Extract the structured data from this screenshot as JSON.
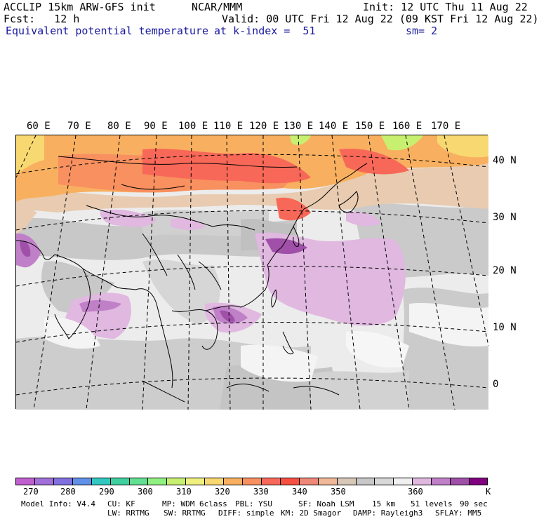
{
  "header": {
    "line1_left": "ACCLIP 15km ARW-GFS init",
    "line1_center": "NCAR/MMM",
    "line1_right": "Init: 12 UTC Thu 11 Aug 22",
    "line2_left": "Fcst:   12 h",
    "line2_right": "Valid: 00 UTC Fri 12 Aug 22 (09 KST Fri 12 Aug 22)",
    "field": "Equivalent potential temperature",
    "level": "at k-index =  51",
    "smoothing": "sm= 2"
  },
  "map": {
    "longitude_labels": [
      "60 E",
      "70 E",
      "80 E",
      "90 E",
      "100 E",
      "110 E",
      "120 E",
      "130 E",
      "140 E",
      "150 E",
      "160 E",
      "170 E"
    ],
    "latitude_labels": [
      "40 N",
      "30 N",
      "20 N",
      "10 N",
      "0"
    ]
  },
  "colorbar": {
    "unit": "K",
    "labels": [
      "270",
      "280",
      "290",
      "300",
      "310",
      "320",
      "330",
      "340",
      "350",
      "360"
    ],
    "colors": [
      "#c060d0",
      "#a070d8",
      "#8070e0",
      "#6090e8",
      "#30c8c0",
      "#40d0a0",
      "#60e090",
      "#90f080",
      "#c8f070",
      "#f0f080",
      "#f8d870",
      "#f8b060",
      "#f89060",
      "#f86858",
      "#f85040",
      "#f08878",
      "#f0b898",
      "#d8c8b8",
      "#c8c8c8",
      "#d8d8d8",
      "#f0f0f0",
      "#e0b8e0",
      "#c080c8",
      "#a050a8",
      "#800080"
    ]
  },
  "footer": {
    "line1": [
      "Model Info: V4.4",
      "CU: KF",
      "MP: WDM 6class",
      "PBL: YSU",
      "SF: Noah LSM",
      "15 km",
      "51 levels",
      "90 sec"
    ],
    "line2": [
      "LW: RRTMG",
      "SW: RRTMG",
      "DIFF: simple",
      "KM: 2D Smagor",
      "DAMP: Rayleigh3",
      "SFLAY: MM5"
    ]
  }
}
